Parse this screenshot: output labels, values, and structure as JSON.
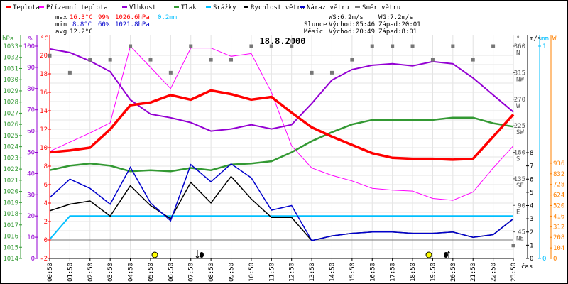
{
  "legend": [
    {
      "label": "Teplota",
      "color": "#ff0000"
    },
    {
      "label": "Přízemní teplota",
      "color": "#ff00ff"
    },
    {
      "label": "Vlhkost",
      "color": "#9400d3"
    },
    {
      "label": "Tlak",
      "color": "#339933"
    },
    {
      "label": "Srážky",
      "color": "#00bfff"
    },
    {
      "label": "Rychlost větru",
      "color": "#000000"
    },
    {
      "label": "Náraz větru",
      "color": "#0000cc"
    },
    {
      "label": "Směr větru",
      "color": "#777777"
    }
  ],
  "stats": {
    "max_label": "max",
    "max_temp": "16.3°C",
    "max_hum": "99%",
    "max_press": "1026.6hPa",
    "max_rain": "0.2mm",
    "min_label": "min",
    "min_temp": "8.8°C",
    "min_hum": "60%",
    "min_press": "1021.8hPa",
    "avg_label": "avg",
    "avg_temp": "12.2°C"
  },
  "astro": {
    "ws": "WS:6.2m/s",
    "wg": "WG:7.2m/s",
    "sun_label": "Slunce",
    "sun_rise": "Východ:05:46",
    "sun_set": "Západ:20:01",
    "moon_label": "Měsíc",
    "moon_rise": "Východ:20:49",
    "moon_set": "Západ:8:01"
  },
  "chart_data": {
    "type": "line",
    "title": "18.8.2000",
    "xlabel": "čas",
    "x": [
      "00:50",
      "01:50",
      "02:50",
      "03:50",
      "04:50",
      "05:50",
      "06:50",
      "07:50",
      "08:50",
      "09:50",
      "10:50",
      "11:50",
      "12:50",
      "13:50",
      "14:50",
      "15:50",
      "16:50",
      "17:50",
      "18:50",
      "19:50",
      "20:50",
      "21:50",
      "22:50",
      "23:50"
    ],
    "axes": {
      "pressure": {
        "unit": "hPa",
        "range": [
          1014,
          1033
        ],
        "ticks": [
          "1033",
          "1032",
          "1031",
          "1030",
          "1029",
          "1028",
          "1027",
          "1026",
          "1025",
          "1024",
          "1023",
          "1022",
          "1021",
          "1020",
          "1019",
          "1018",
          "1017",
          "1016",
          "1015",
          "1014"
        ]
      },
      "humidity": {
        "unit": "%",
        "range": [
          0,
          100
        ],
        "ticks": [
          "100",
          "90",
          "80",
          "70",
          "60",
          "50",
          "40",
          "30",
          "20",
          "10",
          "0"
        ]
      },
      "temperature": {
        "unit": "°C",
        "range": [
          -2,
          20
        ],
        "ticks": [
          "20",
          "18",
          "16",
          "14",
          "12",
          "10",
          "8",
          "6",
          "4",
          "2",
          "0",
          "-2"
        ]
      },
      "direction": {
        "unit": "°",
        "range": [
          0,
          360
        ],
        "ticks": [
          [
            "360",
            "N"
          ],
          [
            "315",
            "NW"
          ],
          [
            "270",
            "W"
          ],
          [
            "225",
            "SW"
          ],
          [
            "180",
            "S"
          ],
          [
            "135",
            "SE"
          ],
          [
            "90",
            "E"
          ],
          [
            "45",
            "NE"
          ]
        ]
      },
      "wind": {
        "unit": "m/s",
        "range": [
          0,
          8
        ],
        "ticks": [
          "0",
          "1",
          "2",
          "3",
          "4",
          "5",
          "6",
          "7",
          "8"
        ]
      },
      "rain": {
        "unit": "mm",
        "range": [
          0,
          1
        ],
        "ticks": [
          "0",
          "1"
        ]
      },
      "radiation": {
        "unit": "W",
        "ticks": [
          "0",
          "104",
          "208",
          "312",
          "416",
          "520",
          "624",
          "728",
          "832",
          "936"
        ]
      }
    },
    "series": [
      {
        "name": "Teplota",
        "axis": "temperature",
        "values": [
          9.5,
          9.7,
          10.0,
          12.0,
          14.6,
          14.9,
          15.7,
          15.2,
          16.2,
          15.8,
          15.2,
          15.5,
          13.8,
          12.2,
          11.2,
          10.3,
          9.4,
          8.9,
          8.8,
          8.8,
          8.7,
          8.8,
          11.2,
          13.6
        ]
      },
      {
        "name": "Přízemní teplota",
        "axis": "temperature",
        "values": [
          9.6,
          10.6,
          11.6,
          12.7,
          21.0,
          18.7,
          16.4,
          20.8,
          20.8,
          19.9,
          20.2,
          16.0,
          10.2,
          7.8,
          7.0,
          6.4,
          5.6,
          5.4,
          5.3,
          4.5,
          4.3,
          5.2,
          7.8,
          10.2
        ]
      },
      {
        "name": "Vlhkost",
        "axis": "humidity",
        "values": [
          98.7,
          97,
          93,
          88,
          74.7,
          68,
          66.3,
          64,
          60,
          61,
          63,
          61,
          63,
          73,
          84,
          89,
          91,
          91.7,
          90.7,
          92.7,
          91.7,
          85,
          77,
          69
        ]
      },
      {
        "name": "Tlak",
        "axis": "pressure",
        "values": [
          1021.9,
          1022.3,
          1022.5,
          1022.3,
          1021.8,
          1021.9,
          1021.8,
          1022.1,
          1021.9,
          1022.4,
          1022.5,
          1022.7,
          1023.5,
          1024.5,
          1025.3,
          1026.0,
          1026.4,
          1026.4,
          1026.4,
          1026.4,
          1026.6,
          1026.6,
          1026.1,
          1025.8
        ]
      },
      {
        "name": "Srážky",
        "axis": "rain",
        "values": [
          0.09,
          0.2,
          0.2,
          0.2,
          0.2,
          0.2,
          0.2,
          0.2,
          0.2,
          0.2,
          0.2,
          0.2,
          0.2,
          0.2,
          0.2,
          0.2,
          0.2,
          0.2,
          0.2,
          0.2,
          0.2,
          0.2,
          0.2,
          0.2
        ]
      },
      {
        "name": "Rychlost větru",
        "axis": "wind",
        "values": [
          3.6,
          4.1,
          4.35,
          3.2,
          5.5,
          4.0,
          3.0,
          5.75,
          4.2,
          6.2,
          4.5,
          3.1,
          3.1,
          1.35,
          1.7,
          1.9,
          2.0,
          2.0,
          1.9,
          1.9,
          2.0,
          1.6,
          1.8,
          3.0
        ]
      },
      {
        "name": "Náraz větru",
        "axis": "wind",
        "values": [
          4.6,
          6.0,
          5.3,
          4.1,
          6.9,
          4.2,
          2.85,
          7.1,
          5.8,
          7.15,
          6.1,
          3.65,
          4.0,
          1.35,
          1.7,
          1.9,
          2.0,
          2.0,
          1.9,
          1.9,
          2.0,
          1.6,
          1.8,
          3.0
        ]
      },
      {
        "name": "Směr větru",
        "axis": "direction",
        "values": [
          344,
          315,
          337,
          337,
          360,
          337,
          315,
          360,
          337,
          337,
          360,
          360,
          360,
          315,
          315,
          337,
          360,
          360,
          360,
          337,
          360,
          337,
          360,
          22
        ]
      }
    ]
  }
}
